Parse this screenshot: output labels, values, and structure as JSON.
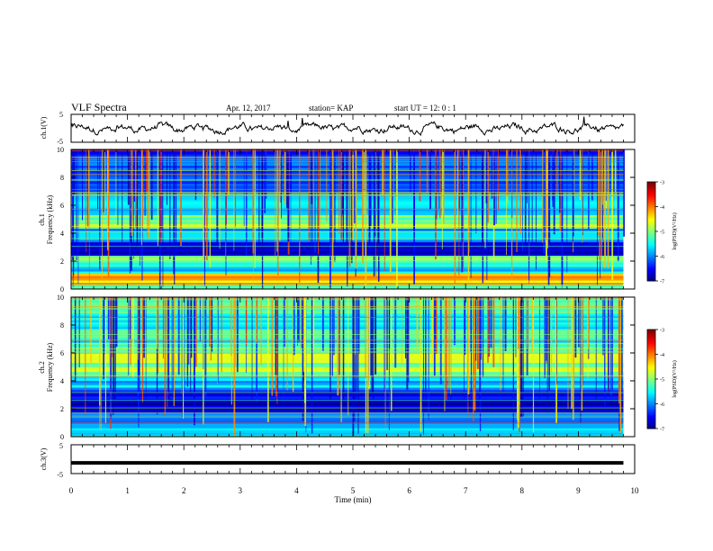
{
  "header": {
    "title": "VLF Spectra",
    "date": "Apr. 12, 2017",
    "station": "station= KAP",
    "start": "start  UT =   12: 0  : 1"
  },
  "chart_data": [
    {
      "type": "line",
      "name": "ch1-waveform",
      "ylabel": "ch.1(V)",
      "ylim": [
        -5,
        5
      ],
      "yticks": [
        "5",
        "-5"
      ],
      "xlim": [
        0,
        10
      ],
      "description_values": "noisy waveform around ~0 V, amplitude roughly ±2 V, ends near 9.8 min",
      "x_end": 9.8
    },
    {
      "type": "heatmap",
      "name": "ch1-spectrogram",
      "ylabel": "ch.1\nFrequency (kHz)",
      "ylabel_line1": "ch.1",
      "ylabel_line2": "Frequency (kHz)",
      "ylim": [
        0,
        10
      ],
      "yticks": [
        "0",
        "2",
        "4",
        "6",
        "8",
        "10"
      ],
      "xlim": [
        0,
        10
      ],
      "x_end": 9.8,
      "colorbar": {
        "label": "log(PSD)(V²/Hz)",
        "range": [
          -7,
          -3
        ],
        "ticks": [
          "-3",
          "-4",
          "-5",
          "-6",
          "-7"
        ]
      },
      "bands": [
        {
          "f0": 0.0,
          "f1": 0.3,
          "level": -5.5
        },
        {
          "f0": 0.3,
          "f1": 1.2,
          "level": -4.2
        },
        {
          "f0": 1.2,
          "f1": 2.0,
          "level": -5.6
        },
        {
          "f0": 2.0,
          "f1": 2.5,
          "level": -5.0
        },
        {
          "f0": 2.5,
          "f1": 3.4,
          "level": -6.5
        },
        {
          "f0": 3.4,
          "f1": 4.3,
          "level": -5.8
        },
        {
          "f0": 4.3,
          "f1": 5.3,
          "level": -5.0
        },
        {
          "f0": 5.3,
          "f1": 7.0,
          "level": -5.8
        },
        {
          "f0": 7.0,
          "f1": 10.0,
          "level": -6.2
        }
      ]
    },
    {
      "type": "heatmap",
      "name": "ch2-spectrogram",
      "ylabel_line1": "ch.2",
      "ylabel_line2": "Frequency (kHz)",
      "ylim": [
        0,
        10
      ],
      "yticks": [
        "0",
        "2",
        "4",
        "6",
        "8",
        "10"
      ],
      "xlim": [
        0,
        10
      ],
      "x_end": 9.8,
      "colorbar": {
        "label": "log(PSD)(V²/Hz)",
        "range": [
          -7,
          -3
        ],
        "ticks": [
          "-3",
          "-4",
          "-5",
          "-6",
          "-7"
        ]
      },
      "bands": [
        {
          "f0": 0.0,
          "f1": 0.8,
          "level": -5.6
        },
        {
          "f0": 0.8,
          "f1": 1.8,
          "level": -6.0
        },
        {
          "f0": 1.8,
          "f1": 3.4,
          "level": -6.6
        },
        {
          "f0": 3.4,
          "f1": 4.4,
          "level": -5.7
        },
        {
          "f0": 4.4,
          "f1": 6.5,
          "level": -4.9
        },
        {
          "f0": 6.5,
          "f1": 10.0,
          "level": -5.4
        }
      ]
    },
    {
      "type": "line",
      "name": "ch3-waveform",
      "ylabel": "ch.3(V)",
      "ylim": [
        -5,
        5
      ],
      "yticks": [
        "5",
        "-5"
      ],
      "xlim": [
        0,
        10
      ],
      "x_end": 9.8,
      "constant_value": -1.3
    }
  ],
  "xaxis": {
    "label": "Time  (min)",
    "ticks": [
      "0",
      "1",
      "2",
      "3",
      "4",
      "5",
      "6",
      "7",
      "8",
      "9",
      "10"
    ]
  }
}
